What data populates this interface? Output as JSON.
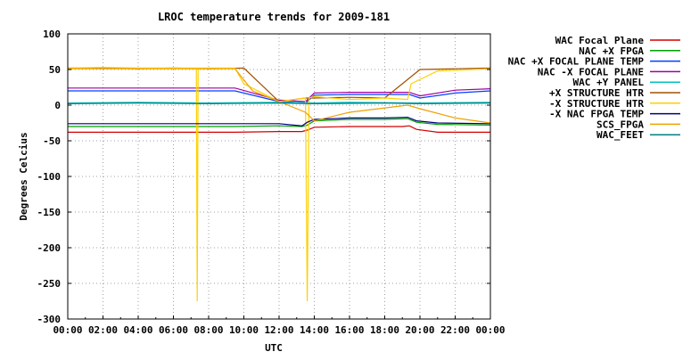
{
  "chart_data": {
    "type": "line",
    "title": "LROC temperature trends for 2009-181",
    "xlabel": "UTC",
    "ylabel": "Degrees Celcius",
    "xlim": [
      0,
      24
    ],
    "ylim": [
      -300,
      100
    ],
    "x_ticks": [
      "00:00",
      "02:00",
      "04:00",
      "06:00",
      "08:00",
      "10:00",
      "12:00",
      "14:00",
      "16:00",
      "18:00",
      "20:00",
      "22:00",
      "00:00"
    ],
    "y_ticks": [
      "100",
      "50",
      "0",
      "-50",
      "-100",
      "-150",
      "-200",
      "-250",
      "-300"
    ],
    "grid": true,
    "legend": "right",
    "series": [
      {
        "name": "WAC Focal Plane",
        "color": "#d00000",
        "x": [
          0,
          9.5,
          12,
          13.3,
          13.6,
          14,
          16,
          18,
          19,
          19.4,
          19.8,
          21,
          24
        ],
        "y": [
          -38,
          -38,
          -37,
          -37,
          -35,
          -31,
          -30,
          -30,
          -30,
          -29,
          -34,
          -38,
          -38
        ]
      },
      {
        "name": "NAC +X FPGA",
        "color": "#00a000",
        "x": [
          0,
          9.5,
          12,
          13.3,
          13.6,
          14,
          16,
          18,
          19.3,
          19.8,
          21,
          24
        ],
        "y": [
          -30,
          -30,
          -29,
          -30,
          -28,
          -22,
          -20,
          -20,
          -19,
          -24,
          -27,
          -28
        ]
      },
      {
        "name": "NAC +X FOCAL PLANE TEMP",
        "color": "#0040ff",
        "x": [
          0,
          9.5,
          12,
          13.5,
          14,
          16,
          18,
          19.4,
          20,
          22,
          24
        ],
        "y": [
          20,
          20,
          5,
          3,
          14,
          15,
          15,
          15,
          10,
          17,
          20
        ]
      },
      {
        "name": "NAC -X FOCAL PLANE",
        "color": "#a000a0",
        "x": [
          0,
          9.5,
          12,
          13.5,
          14,
          16,
          18,
          19.4,
          20,
          22,
          24
        ],
        "y": [
          24,
          24,
          7,
          5,
          17,
          18,
          18,
          18,
          13,
          21,
          23
        ]
      },
      {
        "name": "WAC +Y PANEL",
        "color": "#00c0c0",
        "x": [
          0,
          4,
          8,
          12,
          14,
          16,
          20,
          24
        ],
        "y": [
          3,
          4,
          3,
          4,
          3,
          4,
          3,
          4
        ]
      },
      {
        "name": "+X STRUCTURE HTR",
        "color": "#a05000",
        "x": [
          0,
          2,
          4,
          6,
          8,
          10,
          12,
          13.5,
          14,
          16,
          18,
          20,
          22,
          24
        ],
        "y": [
          52,
          52,
          51,
          52,
          51,
          52,
          5,
          10,
          10,
          11,
          10,
          50,
          51,
          52
        ]
      },
      {
        "name": "-X STRUCTURE HTR",
        "color": "#ffd000",
        "x": [
          0,
          2,
          4,
          6,
          7.3,
          7.35,
          7.4,
          9.5,
          10,
          12,
          13.5,
          13.6,
          13.7,
          14,
          16,
          18,
          19.3,
          19.5,
          21,
          24
        ],
        "y": [
          52,
          53,
          52,
          52,
          52,
          -275,
          52,
          52,
          30,
          5,
          10,
          -275,
          10,
          12,
          8,
          10,
          8,
          30,
          48,
          51
        ]
      },
      {
        "name": "-X NAC FPGA TEMP",
        "color": "#000080",
        "x": [
          0,
          9.5,
          12,
          13.3,
          13.6,
          14,
          16,
          18,
          19.3,
          19.8,
          21,
          24
        ],
        "y": [
          -26,
          -26,
          -26,
          -29,
          -24,
          -20,
          -18,
          -18,
          -17,
          -22,
          -25,
          -26
        ]
      },
      {
        "name": "SCS_FPGA",
        "color": "#f0a000",
        "x": [
          0,
          9.5,
          10.5,
          12,
          13.5,
          14,
          16,
          19.3,
          20,
          22,
          24
        ],
        "y": [
          51,
          51,
          20,
          5,
          -10,
          -22,
          -10,
          0,
          -5,
          -18,
          -25
        ]
      },
      {
        "name": "WAC_FEET",
        "color": "#008080",
        "x": [
          0,
          4,
          8,
          12,
          14,
          18,
          20,
          24
        ],
        "y": [
          2,
          3,
          2,
          3,
          2,
          3,
          2,
          3
        ]
      }
    ]
  }
}
